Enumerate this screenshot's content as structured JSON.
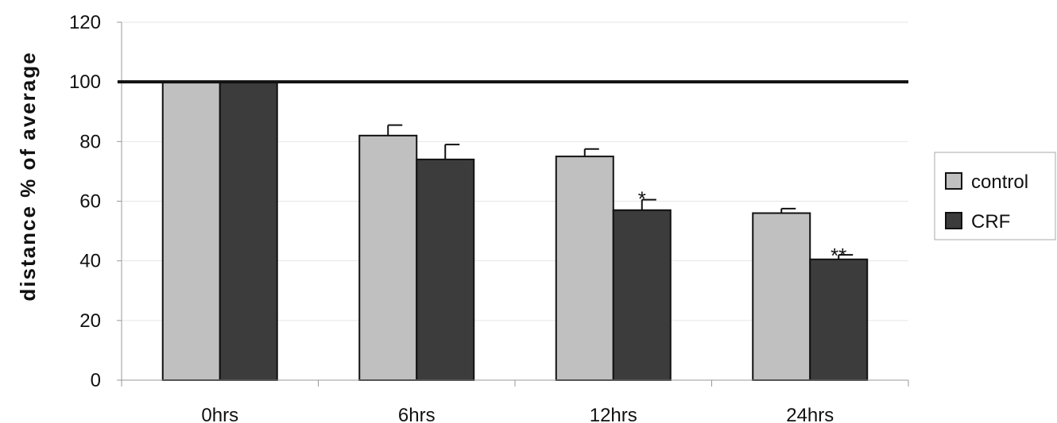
{
  "chart_data": {
    "type": "bar",
    "categories": [
      "0hrs",
      "6hrs",
      "12hrs",
      "24hrs"
    ],
    "series": [
      {
        "name": "control",
        "values": [
          100,
          82,
          75,
          56
        ],
        "errors": [
          0,
          3.5,
          2.5,
          1.5
        ],
        "color": "#c0c0c0"
      },
      {
        "name": "CRF",
        "values": [
          100,
          74,
          57,
          40.5
        ],
        "errors": [
          0,
          5,
          3.5,
          1.5
        ],
        "color": "#3c3c3c"
      }
    ],
    "significance": [
      "",
      "",
      "*",
      "**"
    ],
    "ylabel": "distance % of average",
    "xlabel": "",
    "ylim": [
      0,
      120
    ],
    "yticks": [
      0,
      20,
      40,
      60,
      80,
      100,
      120
    ],
    "reference_line": 100,
    "grid": true,
    "legend_position": "right"
  }
}
